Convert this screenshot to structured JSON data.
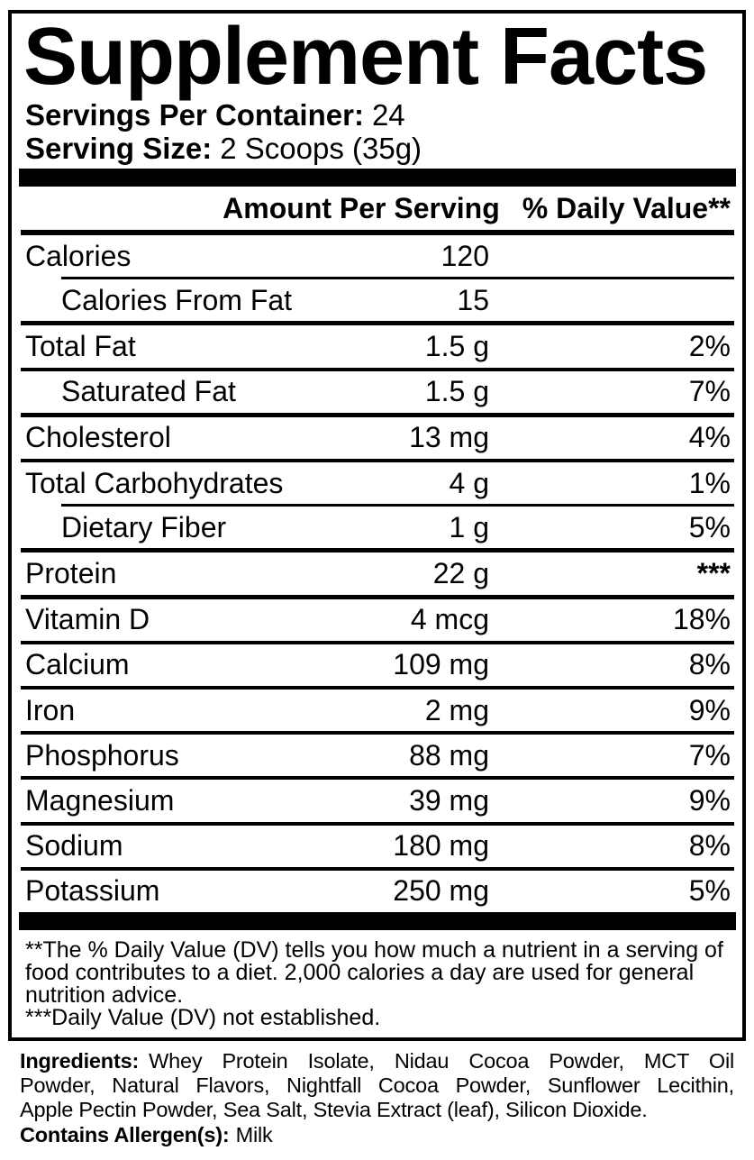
{
  "title": "Supplement Facts",
  "servings": {
    "label": "Servings Per Container:",
    "value": "24"
  },
  "serving_size": {
    "label": "Serving Size:",
    "value": "2 Scoops (35g)"
  },
  "table_header": {
    "amount": "Amount Per Serving",
    "daily_value": "% Daily Value**"
  },
  "rows": [
    {
      "label": "Calories",
      "amount": "120",
      "dv": ""
    },
    {
      "label": "Calories From Fat",
      "amount": "15",
      "dv": ""
    },
    {
      "label": "Total Fat",
      "amount": "1.5 g",
      "dv": "2%"
    },
    {
      "label": "Saturated Fat",
      "amount": "1.5 g",
      "dv": "7%"
    },
    {
      "label": "Cholesterol",
      "amount": "13 mg",
      "dv": "4%"
    },
    {
      "label": "Total Carbohydrates",
      "amount": "4 g",
      "dv": "1%"
    },
    {
      "label": "Dietary Fiber",
      "amount": "1 g",
      "dv": "5%"
    },
    {
      "label": "Protein",
      "amount": "22 g",
      "dv": "***"
    },
    {
      "label": "Vitamin D",
      "amount": "4 mcg",
      "dv": "18%"
    },
    {
      "label": "Calcium",
      "amount": "109 mg",
      "dv": "8%"
    },
    {
      "label": "Iron",
      "amount": "2 mg",
      "dv": "9%"
    },
    {
      "label": "Phosphorus",
      "amount": "88 mg",
      "dv": "7%"
    },
    {
      "label": "Magnesium",
      "amount": "39 mg",
      "dv": "9%"
    },
    {
      "label": "Sodium",
      "amount": "180 mg",
      "dv": "8%"
    },
    {
      "label": "Potassium",
      "amount": "250 mg",
      "dv": "5%"
    }
  ],
  "footnote": {
    "lines": [
      "**The % Daily Value (DV) tells you how much a nutrient in a serving of",
      "food contributes to a diet. 2,000 calories a day are used for general",
      "nutrition advice.",
      "***Daily Value (DV) not established."
    ]
  },
  "ingredients": {
    "label": "Ingredients:",
    "lines": [
      "Whey Protein Isolate, Nidau Cocoa Powder, MCT Oil",
      "Powder, Natural Flavors, Nightfall Cocoa Powder, Sunflower Lecithin,",
      "Apple Pectin Powder, Sea Salt, Stevia Extract (leaf), Silicon Dioxide."
    ]
  },
  "allergen": {
    "label": "Contains Allergen(s):",
    "value": "Milk"
  },
  "colors": {
    "ink": "#000000",
    "background": "#ffffff"
  }
}
